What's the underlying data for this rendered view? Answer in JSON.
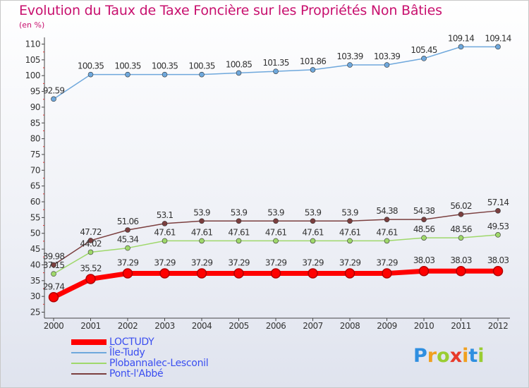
{
  "title": "Evolution du Taux de Taxe Foncière sur les Propriétés Non Bâties",
  "subtitle": "(en %)",
  "brand": {
    "text": "Proxiti",
    "letter_colors": [
      "#2f8fe0",
      "#f0a020",
      "#9acd32",
      "#e83a2a",
      "#f0a020",
      "#2f8fe0",
      "#9acd32"
    ]
  },
  "chart_data": {
    "type": "line",
    "title": "Evolution du Taux de Taxe Foncière sur les Propriétés Non Bâties",
    "xlabel": "",
    "ylabel": "(en %)",
    "ylim": [
      25,
      110
    ],
    "yticks": [
      25,
      30,
      35,
      40,
      45,
      50,
      55,
      60,
      65,
      70,
      75,
      80,
      85,
      90,
      95,
      100,
      105,
      110
    ],
    "grid": false,
    "legend_position": "bottom-left",
    "categories": [
      "2000",
      "2001",
      "2002",
      "2003",
      "2004",
      "2005",
      "2006",
      "2007",
      "2008",
      "2009",
      "2010",
      "2011",
      "2012"
    ],
    "series": [
      {
        "name": "LOCTUDY",
        "color": "#ff0000",
        "values": [
          29.74,
          35.52,
          37.29,
          37.29,
          37.29,
          37.29,
          37.29,
          37.29,
          37.29,
          37.29,
          38.03,
          38.03,
          38.03
        ],
        "labels": [
          "29.74",
          "35.52",
          "37.29",
          "37.29",
          "37.29",
          "37.29",
          "37.29",
          "37.29",
          "37.29",
          "37.29",
          "38.03",
          "38.03",
          "38.03"
        ],
        "emphasis": true
      },
      {
        "name": "Île-Tudy",
        "color": "#6fa8dc",
        "values": [
          92.59,
          100.35,
          100.35,
          100.35,
          100.35,
          100.85,
          101.35,
          101.86,
          103.39,
          103.39,
          105.45,
          109.14,
          109.14
        ],
        "labels": [
          "92.59",
          "100.35",
          "100.35",
          "100.35",
          "100.35",
          "100.85",
          "101.35",
          "101.86",
          "103.39",
          "103.39",
          "105.45",
          "109.14",
          "109.14"
        ]
      },
      {
        "name": "Plobannalec-Lesconil",
        "color": "#9fd86b",
        "values": [
          37.15,
          44.02,
          45.34,
          47.61,
          47.61,
          47.61,
          47.61,
          47.61,
          47.61,
          47.61,
          48.56,
          48.56,
          49.53
        ],
        "labels": [
          "37.15",
          "44.02",
          "45.34",
          "47.61",
          "47.61",
          "47.61",
          "47.61",
          "47.61",
          "47.61",
          "47.61",
          "48.56",
          "48.56",
          "49.53"
        ]
      },
      {
        "name": "Pont-l'Abbé",
        "color": "#7b3f3f",
        "values": [
          39.98,
          47.72,
          51.06,
          53.1,
          53.9,
          53.9,
          53.9,
          53.9,
          53.9,
          54.38,
          54.38,
          56.02,
          57.14
        ],
        "labels": [
          "39.98",
          "47.72",
          "51.06",
          "53.1",
          "53.9",
          "53.9",
          "53.9",
          "53.9",
          "53.9",
          "54.38",
          "54.38",
          "56.02",
          "57.14"
        ]
      }
    ]
  }
}
